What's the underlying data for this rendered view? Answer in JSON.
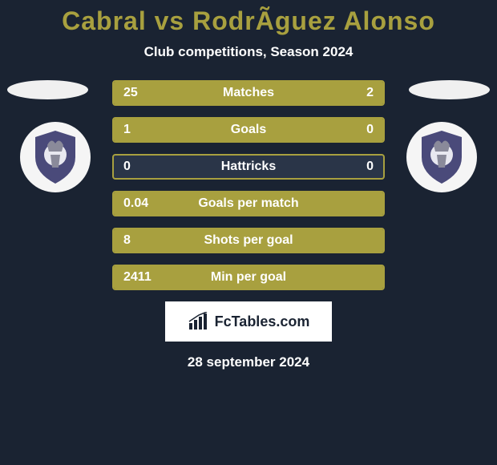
{
  "title_color": "#a8a03f",
  "title": "Cabral vs RodrÃ­guez Alonso",
  "subtitle": "Club competitions, Season 2024",
  "date": "28 september 2024",
  "brand": "FcTables.com",
  "colors": {
    "background": "#1a2332",
    "bar_fill": "#a8a03f",
    "bar_border": "#a8a03f",
    "bar_bg": "#2a3548",
    "text": "#ffffff",
    "brand_bg": "#ffffff",
    "logo_bg": "#f5f5f5",
    "logo_primary": "#4a4a7a",
    "logo_secondary": "#8a8a9a"
  },
  "stats": [
    {
      "label": "Matches",
      "left_value": "25",
      "right_value": "2",
      "left_pct": 78,
      "right_pct": 22
    },
    {
      "label": "Goals",
      "left_value": "1",
      "right_value": "0",
      "left_pct": 98,
      "right_pct": 2
    },
    {
      "label": "Hattricks",
      "left_value": "0",
      "right_value": "0",
      "left_pct": 0,
      "right_pct": 0
    },
    {
      "label": "Goals per match",
      "left_value": "0.04",
      "right_value": "",
      "left_pct": 98,
      "right_pct": 2
    },
    {
      "label": "Shots per goal",
      "left_value": "8",
      "right_value": "",
      "left_pct": 98,
      "right_pct": 2
    },
    {
      "label": "Min per goal",
      "left_value": "2411",
      "right_value": "",
      "left_pct": 98,
      "right_pct": 2
    }
  ]
}
